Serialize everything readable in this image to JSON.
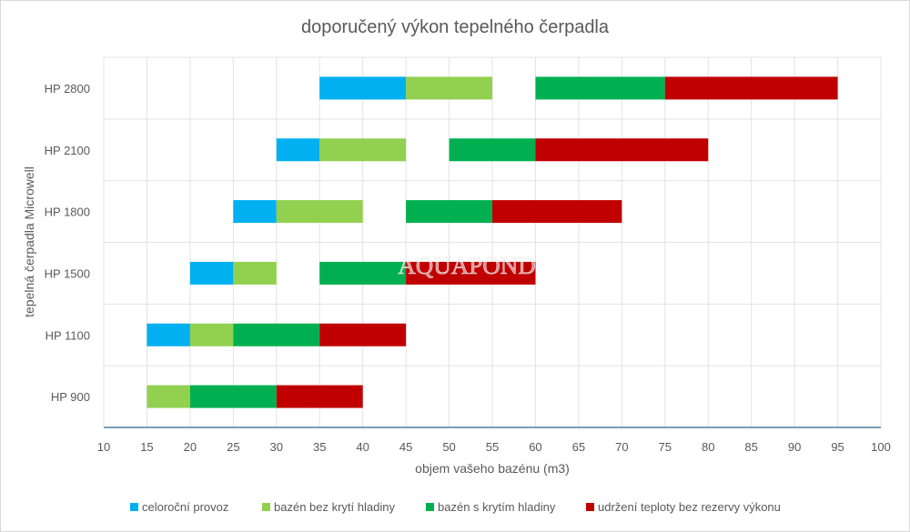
{
  "chart_data": {
    "type": "bar",
    "orientation": "horizontal",
    "stacked_ranges": true,
    "title": "doporučený výkon tepelného čerpadla",
    "xlabel": "objem vašeho bazénu (m3)",
    "ylabel": "tepelná čerpadla Microwell",
    "xlim": [
      10,
      100
    ],
    "xticks": [
      10,
      15,
      20,
      25,
      30,
      35,
      40,
      45,
      50,
      55,
      60,
      65,
      70,
      75,
      80,
      85,
      90,
      95,
      100
    ],
    "grid": true,
    "legend_position": "bottom",
    "watermark": "AQUAPOND",
    "categories": [
      "HP 2800",
      "HP 2100",
      "HP 1800",
      "HP 1500",
      "HP 1100",
      "HP 900"
    ],
    "series": [
      {
        "name": "celoroční provoz",
        "color": "#00b0f0",
        "ranges": [
          [
            35,
            45
          ],
          [
            30,
            35
          ],
          [
            25,
            30
          ],
          [
            20,
            25
          ],
          [
            15,
            20
          ],
          null
        ]
      },
      {
        "name": "bazén bez krytí hladiny",
        "color": "#92d050",
        "ranges": [
          [
            45,
            55
          ],
          [
            35,
            45
          ],
          [
            30,
            40
          ],
          [
            25,
            30
          ],
          [
            20,
            25
          ],
          [
            15,
            20
          ]
        ]
      },
      {
        "name": "bazén s krytím hladiny",
        "color": "#00b050",
        "ranges": [
          [
            60,
            75
          ],
          [
            50,
            60
          ],
          [
            45,
            55
          ],
          [
            35,
            45
          ],
          [
            25,
            35
          ],
          [
            20,
            30
          ]
        ]
      },
      {
        "name": "udržení teploty bez rezervy výkonu",
        "color": "#c00000",
        "ranges": [
          [
            75,
            95
          ],
          [
            60,
            80
          ],
          [
            55,
            70
          ],
          [
            45,
            60
          ],
          [
            35,
            45
          ],
          [
            30,
            40
          ]
        ]
      }
    ]
  }
}
